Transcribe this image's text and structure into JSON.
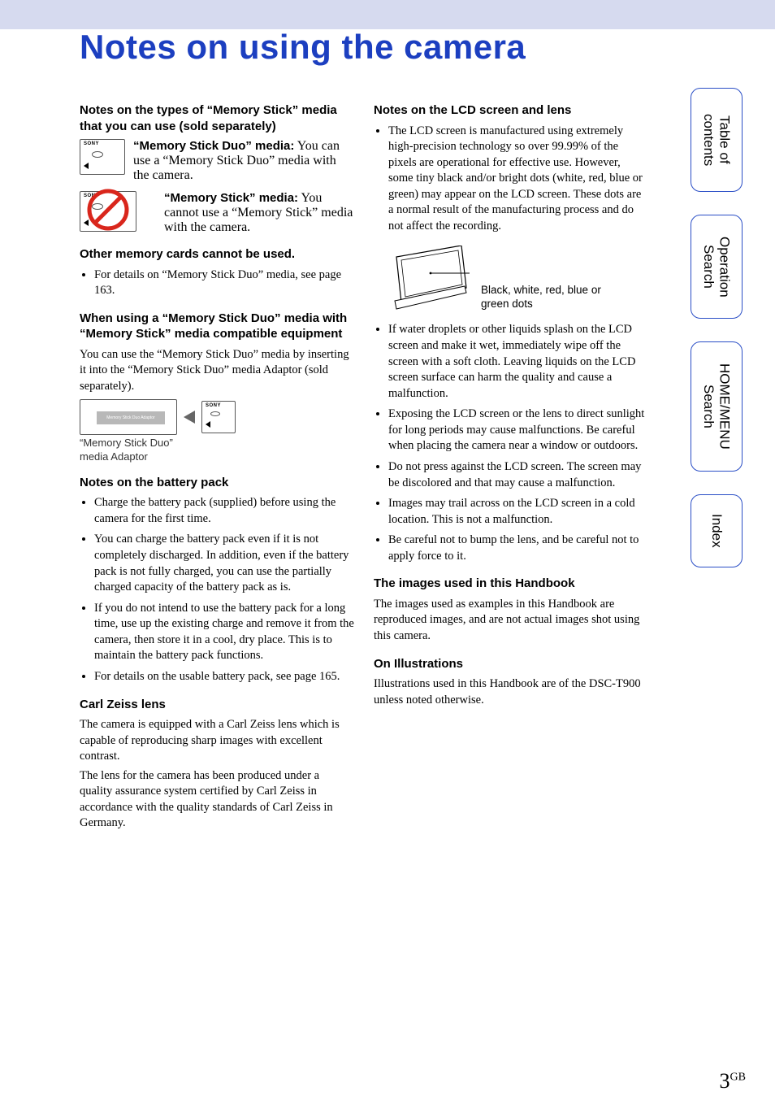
{
  "page_title": "Notes on using the camera",
  "page_number": "3",
  "page_number_suffix": "GB",
  "colors": {
    "title": "#1c3fc0",
    "topband": "#d6daef",
    "tab_border": "#2a4ec6",
    "no_symbol": "#d9261c"
  },
  "tabs": [
    {
      "label": "Table of\ncontents"
    },
    {
      "label": "Operation\nSearch"
    },
    {
      "label": "HOME/MENU\nSearch"
    },
    {
      "label": "Index"
    }
  ],
  "left": {
    "h_types": "Notes on the types of “Memory Stick” media that you can use (sold separately)",
    "duo_lead": "“Memory Stick Duo” media:",
    "duo_text": " You can use a “Memory Stick Duo” media with the camera.",
    "ms_lead": "“Memory Stick” media:",
    "ms_text": " You cannot use a “Memory Stick” media with the camera.",
    "h_other": "Other memory cards cannot be used.",
    "other_bullet": "For details on “Memory Stick Duo” media, see page 163.",
    "h_compat": "When using a “Memory Stick Duo” media with “Memory Stick” media compatible equipment",
    "compat_text": "You can use the “Memory Stick Duo” media by inserting it into the “Memory Stick Duo” media Adaptor (sold separately).",
    "adaptor_slot_label": "Memory Stick Duo Adaptor",
    "adaptor_caption": "“Memory Stick Duo” media Adaptor",
    "h_battery": "Notes on the battery pack",
    "battery_bullets": [
      "Charge the battery pack (supplied) before using the camera for the first time.",
      "You can charge the battery pack even if it is not completely discharged. In addition, even if the battery pack is not fully charged, you can use the partially charged capacity of the battery pack as is.",
      "If you do not intend to use the battery pack for a long time, use up the existing charge and remove it from the camera, then store it in a cool, dry place. This is to maintain the battery pack functions.",
      "For details on the usable battery pack, see page 165."
    ],
    "h_zeiss": "Carl Zeiss lens",
    "zeiss_p1": "The camera is equipped with a Carl Zeiss lens which is capable of reproducing sharp images with excellent contrast.",
    "zeiss_p2": "The lens for the camera has been produced under a quality assurance system certified by Carl Zeiss in accordance with the quality standards of Carl Zeiss in Germany."
  },
  "right": {
    "h_lcd": "Notes on the LCD screen and lens",
    "lcd_bullet1": "The LCD screen is manufactured using extremely high-precision technology so over 99.99% of the pixels are operational for effective use. However, some tiny black and/or bright dots (white, red, blue or green) may appear on the LCD screen. These dots are a normal result of the manufacturing process and do not affect the recording.",
    "lcd_diagram_label": "Black, white, red, blue or green dots",
    "lcd_bullets_rest": [
      "If water droplets or other liquids splash on the LCD screen and make it wet, immediately wipe off the screen with a soft cloth. Leaving liquids on the LCD screen surface can harm the quality and cause a malfunction.",
      "Exposing the LCD screen or the lens to direct sunlight for long periods may cause malfunctions. Be careful when placing the camera near a window or outdoors.",
      "Do not press against the LCD screen. The screen may be discolored and that may cause a malfunction.",
      "Images may trail across on the LCD screen in a cold location. This is not a malfunction.",
      "Be careful not to bump the lens, and be careful not to apply force to it."
    ],
    "h_images": "The images used in this Handbook",
    "images_text": "The images used as examples in this Handbook are reproduced images, and are not actual images shot using this camera.",
    "h_illus": "On Illustrations",
    "illus_text": "Illustrations used in this Handbook are of the DSC-T900 unless noted otherwise."
  }
}
